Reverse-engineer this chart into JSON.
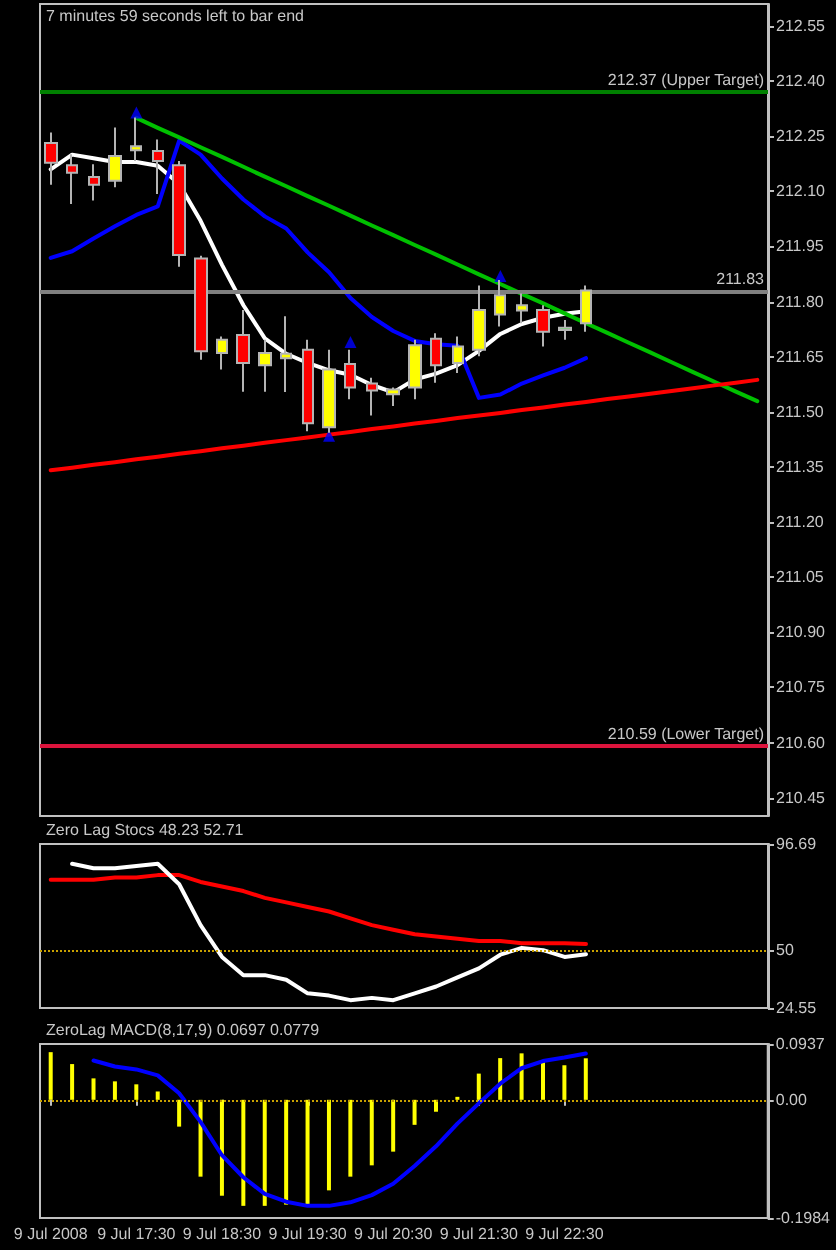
{
  "chart_data": [
    {
      "type": "candlestick",
      "title": "7 minutes 59 seconds left to bar end",
      "tick_labels": "y",
      "categories": [
        null,
        null,
        null,
        null,
        null,
        null,
        null,
        null,
        null,
        null,
        null,
        null,
        null,
        null,
        null,
        null,
        null,
        null,
        null,
        null,
        null,
        null,
        null,
        null,
        null,
        null,
        null,
        null,
        null,
        null,
        null,
        null,
        null,
        null
      ],
      "ohlc": [
        [
          212.232,
          212.26,
          212.118,
          212.178
        ],
        [
          212.171,
          212.201,
          212.066,
          212.151
        ],
        [
          212.139,
          212.174,
          212.075,
          212.118
        ],
        [
          212.129,
          212.274,
          212.111,
          212.196
        ],
        [
          212.212,
          212.301,
          212.183,
          212.223
        ],
        [
          212.21,
          212.241,
          212.093,
          212.183
        ],
        [
          212.171,
          212.183,
          211.895,
          211.927
        ],
        [
          211.917,
          211.925,
          211.642,
          211.665
        ],
        [
          211.66,
          211.705,
          211.615,
          211.696
        ],
        [
          211.709,
          211.777,
          211.555,
          211.633
        ],
        [
          211.627,
          211.696,
          211.555,
          211.66
        ],
        [
          211.646,
          211.76,
          211.554,
          211.658
        ],
        [
          211.669,
          211.696,
          211.447,
          211.469
        ],
        [
          211.458,
          211.669,
          211.443,
          211.615
        ],
        [
          211.63,
          211.669,
          211.534,
          211.566
        ],
        [
          211.577,
          211.593,
          211.49,
          211.558
        ],
        [
          211.548,
          211.566,
          211.516,
          211.561
        ],
        [
          211.566,
          211.696,
          211.534,
          211.681
        ],
        [
          211.699,
          211.714,
          211.579,
          211.627
        ],
        [
          211.633,
          211.705,
          211.606,
          211.678
        ],
        [
          211.669,
          211.844,
          211.651,
          211.777
        ],
        [
          211.765,
          211.859,
          211.732,
          211.817
        ],
        [
          211.776,
          211.822,
          211.741,
          211.79
        ],
        [
          211.777,
          211.79,
          211.678,
          211.718
        ],
        [
          211.723,
          211.75,
          211.696,
          211.729
        ],
        [
          211.741,
          211.844,
          211.718,
          211.83
        ],
        null,
        null,
        null,
        null,
        null,
        null,
        null,
        null
      ],
      "colors": [
        "#ff0000",
        "#ff0000",
        "#ff0000",
        "#ffff00",
        "#ffff00",
        "#ff0000",
        "#ff0000",
        "#ff0000",
        "#ffff00",
        "#ff0000",
        "#ffff00",
        "#ffff00",
        "#ff0000",
        "#ffff00",
        "#ff0000",
        "#ff0000",
        "#ffff00",
        "#ffff00",
        "#ff0000",
        "#ffff00",
        "#ffff00",
        "#ffff00",
        "#ffff00",
        "#ff0000",
        "#00ff00",
        "#ffff00",
        null,
        null,
        null,
        null,
        null,
        null,
        null,
        null
      ],
      "series": [
        {
          "type": "line",
          "color": "#ffffff",
          "values": [
            212.16,
            212.2,
            212.19,
            212.18,
            212.18,
            212.17,
            212.12,
            212.02,
            211.9,
            211.79,
            211.7,
            211.658,
            211.633,
            211.613,
            211.601,
            211.573,
            211.553,
            211.588,
            211.604,
            211.627,
            211.666,
            211.712,
            211.739,
            211.756,
            211.767,
            211.774,
            null,
            null,
            null,
            null,
            null,
            null,
            null,
            null
          ]
        },
        {
          "type": "line",
          "color": "#0000ff",
          "values": [
            211.919,
            211.937,
            211.972,
            212.005,
            212.036,
            212.059,
            212.238,
            212.2,
            212.135,
            212.078,
            212.032,
            211.999,
            211.934,
            211.88,
            211.81,
            211.758,
            211.72,
            211.693,
            211.684,
            211.68,
            211.538,
            211.547,
            211.577,
            211.599,
            211.62,
            211.646,
            null,
            null,
            null,
            null,
            null,
            null,
            null,
            null
          ]
        },
        {
          "type": "line",
          "color": "#00c000",
          "values": [
            null,
            null,
            null,
            null,
            212.3,
            212.273,
            212.247,
            212.22,
            212.194,
            212.167,
            212.14,
            212.114,
            212.087,
            212.061,
            212.034,
            212.007,
            211.981,
            211.954,
            211.928,
            211.901,
            211.874,
            211.848,
            211.821,
            211.795,
            211.768,
            211.741,
            211.715,
            211.688,
            211.662,
            211.635,
            211.608,
            211.582,
            211.555,
            211.529
          ]
        },
        {
          "type": "line",
          "color": "#ff0000",
          "values": [
            211.341,
            211.348,
            211.356,
            211.363,
            211.371,
            211.378,
            211.386,
            211.393,
            211.401,
            211.408,
            211.416,
            211.423,
            211.43,
            211.438,
            211.445,
            211.453,
            211.46,
            211.468,
            211.475,
            211.483,
            211.49,
            211.497,
            211.505,
            211.512,
            211.52,
            211.527,
            211.535,
            211.542,
            211.549,
            211.557,
            211.564,
            211.572,
            211.579,
            211.587
          ]
        },
        {
          "type": "scatter",
          "color": "#0000ff",
          "marker": "triangle",
          "values": [
            null,
            null,
            null,
            null,
            212.315,
            null,
            null,
            null,
            null,
            null,
            null,
            null,
            null,
            211.435,
            211.69,
            null,
            null,
            null,
            null,
            null,
            null,
            211.87,
            null,
            null,
            null,
            null,
            null,
            null,
            null,
            null,
            null,
            null,
            null,
            null
          ]
        }
      ],
      "ref_lines": [
        {
          "axis": "y",
          "value": 212.37,
          "label": "212.37 (Upper Target)",
          "color": "#008000"
        },
        {
          "axis": "y",
          "value": 211.83,
          "label": "211.83",
          "color": "#808080"
        },
        {
          "axis": "y",
          "value": 210.59,
          "label": "210.59 (Lower Target)",
          "color": "#dc143c"
        }
      ],
      "ylim": [
        210.4,
        212.61
      ],
      "yticks": [
        210.45,
        {
          "value": 210.6,
          "label": "210.60"
        },
        210.75,
        {
          "value": 210.9,
          "label": "210.90"
        },
        211.05,
        {
          "value": 211.2,
          "label": "211.20"
        },
        211.35,
        {
          "value": 211.5,
          "label": "211.50"
        },
        211.65,
        {
          "value": 211.8,
          "label": "211.80"
        },
        211.95,
        {
          "value": 212.1,
          "label": "212.10"
        },
        212.25,
        {
          "value": 212.4,
          "label": "212.40"
        },
        212.55
      ]
    },
    {
      "type": "line",
      "title": "Zero Lag Stocs 48.23 52.71",
      "tick_labels": "y",
      "categories": [
        null,
        null,
        null,
        null,
        null,
        null,
        null,
        null,
        null,
        null,
        null,
        null,
        null,
        null,
        null,
        null,
        null,
        null,
        null,
        null,
        null,
        null,
        null,
        null,
        null,
        null,
        null,
        null,
        null,
        null,
        null,
        null,
        null,
        null
      ],
      "series": [
        {
          "color": "#ff0000",
          "values": [
            81,
            81,
            81,
            82,
            82,
            83,
            83,
            80,
            78,
            76,
            73,
            71,
            69,
            67,
            64,
            61,
            59,
            57,
            56,
            55,
            54,
            54,
            53,
            53,
            53,
            52.71,
            null,
            null,
            null,
            null,
            null,
            null,
            null,
            null
          ]
        },
        {
          "color": "#ffffff",
          "values": [
            null,
            88,
            86,
            86,
            87,
            88,
            79,
            61,
            47,
            39,
            39,
            37,
            31,
            30,
            28,
            29,
            28,
            31,
            34,
            38,
            42,
            48,
            51,
            50,
            47,
            48.23,
            null,
            null,
            null,
            null,
            null,
            null,
            null,
            null
          ]
        }
      ],
      "ref_lines": [
        {
          "axis": "y",
          "value": 50,
          "color": "#c8a000",
          "line_style": "dotted"
        }
      ],
      "ylim": [
        24.55,
        96.69
      ],
      "yticks": [
        96.69,
        50,
        24.55
      ]
    },
    {
      "type": "bar",
      "title": "ZeroLag MACD(8,17,9) 0.0697 0.0779",
      "categories": [
        "9 Jul 2008",
        null,
        null,
        null,
        "9 Jul 17:30",
        null,
        null,
        null,
        "9 Jul 18:30",
        null,
        null,
        null,
        "9 Jul 19:30",
        null,
        null,
        null,
        "9 Jul 20:30",
        null,
        null,
        null,
        "9 Jul 21:30",
        null,
        null,
        null,
        "9 Jul 22:30",
        null,
        null,
        null,
        null,
        null,
        null,
        null,
        null,
        null
      ],
      "series": [
        {
          "color": "#ffff00",
          "values": [
            0.08,
            0.06,
            0.036,
            0.031,
            0.026,
            0.014,
            -0.045,
            -0.129,
            -0.161,
            -0.178,
            -0.178,
            -0.176,
            -0.178,
            -0.152,
            -0.129,
            -0.11,
            -0.087,
            -0.042,
            -0.02,
            0.005,
            0.044,
            0.07,
            0.078,
            0.063,
            0.058,
            0.0697,
            null,
            null,
            null,
            null,
            null,
            null,
            null,
            null
          ]
        },
        {
          "type": "line",
          "color": "#0000ff",
          "values": [
            null,
            null,
            0.066,
            0.056,
            0.051,
            0.041,
            0.011,
            -0.037,
            -0.093,
            -0.13,
            -0.158,
            -0.171,
            -0.178,
            -0.178,
            -0.172,
            -0.16,
            -0.141,
            -0.111,
            -0.078,
            -0.04,
            -0.006,
            0.027,
            0.053,
            0.065,
            0.071,
            0.0779,
            null,
            null,
            null,
            null,
            null,
            null,
            null,
            null
          ]
        }
      ],
      "ref_lines": [
        {
          "axis": "y",
          "value": 0,
          "color": "#c8a000",
          "line_style": "dotted"
        }
      ],
      "ylim": [
        -0.1984,
        0.0937
      ],
      "yticks": [
        0.0937,
        {
          "value": 0,
          "label": "0.00"
        },
        -0.1984
      ]
    }
  ]
}
